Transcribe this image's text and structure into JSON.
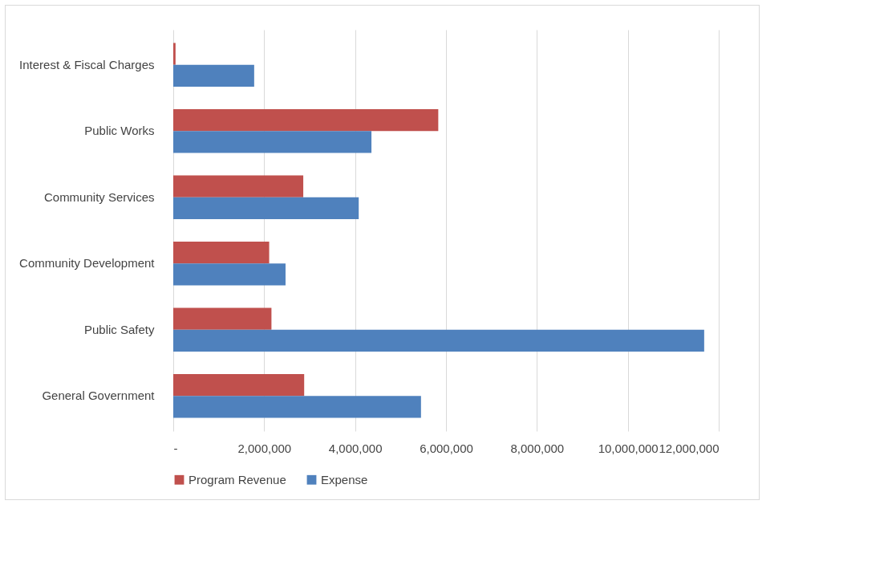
{
  "chart_data": {
    "type": "bar",
    "orientation": "horizontal",
    "categories": [
      "Interest & Fiscal Charges",
      "Public Works",
      "Community Services",
      "Community Development",
      "Public Safety",
      "General Government"
    ],
    "series": [
      {
        "name": "Program Revenue",
        "color": "#c0504d",
        "values": [
          50000,
          5830000,
          2860000,
          2110000,
          2160000,
          2880000
        ]
      },
      {
        "name": "Expense",
        "color": "#4f81bd",
        "values": [
          1780000,
          4360000,
          4080000,
          2470000,
          11680000,
          5450000
        ]
      }
    ],
    "xlim": [
      0,
      12000000
    ],
    "xticks": [
      {
        "value": 0,
        "label": "-"
      },
      {
        "value": 2000000,
        "label": "2,000,000"
      },
      {
        "value": 4000000,
        "label": "4,000,000"
      },
      {
        "value": 6000000,
        "label": "6,000,000"
      },
      {
        "value": 8000000,
        "label": "8,000,000"
      },
      {
        "value": 10000000,
        "label": "10,000,000"
      },
      {
        "value": 12000000,
        "label": "12,000,000"
      }
    ],
    "grid": "x",
    "legend": "bottom"
  }
}
